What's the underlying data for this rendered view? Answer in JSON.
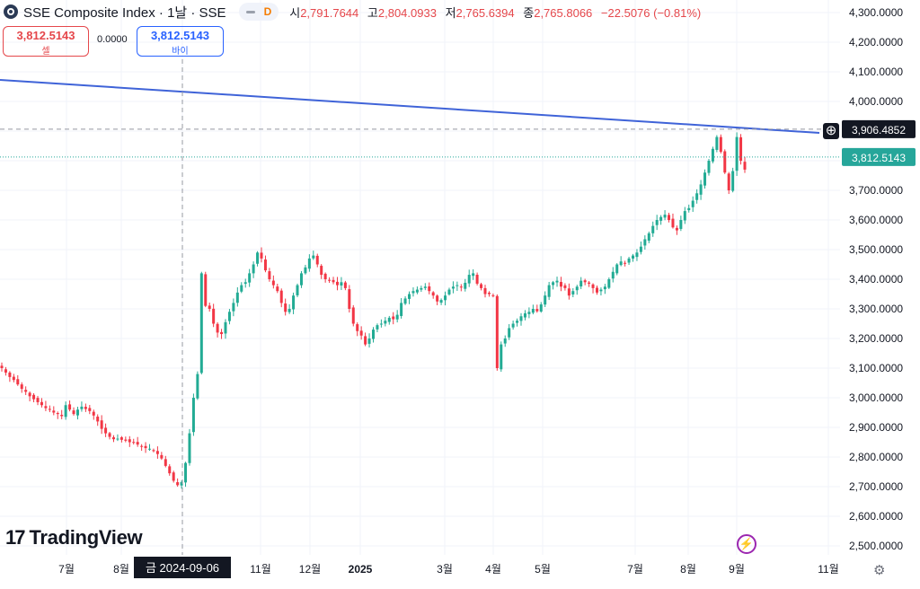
{
  "header": {
    "title": "SSE Composite Index · 1날 · SSE",
    "interval_badge": "D",
    "ohlc": [
      {
        "label": "시",
        "value": "2,791.7644"
      },
      {
        "label": "고",
        "value": "2,804.0933"
      },
      {
        "label": "저",
        "value": "2,765.6394"
      },
      {
        "label": "종",
        "value": "2,765.8066"
      }
    ],
    "change": "−22.5076 (−0.81%)"
  },
  "trade": {
    "sell_value": "3,812.5143",
    "sell_label": "셀",
    "spread": "0.0000",
    "buy_value": "3,812.5143",
    "buy_label": "바이"
  },
  "brand": "TradingView",
  "colors": {
    "up": "#22ab94",
    "down": "#f23645",
    "trend": "#3f63d8",
    "last": "#26a69a"
  },
  "chart_data": {
    "type": "candlestick",
    "x_tick_labels": [
      "7월",
      "8월",
      "금 2024-09-06",
      "11월",
      "12월",
      "2025",
      "3월",
      "4월",
      "5월",
      "7월",
      "8월",
      "9월",
      "11월"
    ],
    "y_tick_labels": [
      "4,300.0000",
      "4,200.0000",
      "4,100.0000",
      "4,000.0000",
      "3,900.0000",
      "3,800.0000",
      "3,700.0000",
      "3,600.0000",
      "3,500.0000",
      "3,400.0000",
      "3,300.0000",
      "3,200.0000",
      "3,100.0000",
      "3,000.0000",
      "2,900.0000",
      "2,800.0000",
      "2,700.0000",
      "2,600.0000",
      "2,500.0000"
    ],
    "ylim": [
      2480,
      4320
    ],
    "crosshair_x_label": "금 2024-09-06",
    "crosshair_y_label": "3,906.4852",
    "last_price_label": "3,812.5143",
    "closes": [
      3100,
      3085,
      3070,
      3060,
      3045,
      3030,
      3020,
      3005,
      2995,
      2985,
      2975,
      2965,
      2960,
      2950,
      2945,
      2938,
      2975,
      2960,
      2945,
      2960,
      2970,
      2962,
      2955,
      2940,
      2920,
      2895,
      2880,
      2868,
      2860,
      2862,
      2858,
      2855,
      2850,
      2848,
      2842,
      2835,
      2830,
      2828,
      2820,
      2810,
      2795,
      2770,
      2745,
      2720,
      2705,
      2715,
      2780,
      2880,
      3000,
      3080,
      3420,
      3310,
      3300,
      3250,
      3220,
      3215,
      3255,
      3290,
      3320,
      3355,
      3380,
      3390,
      3420,
      3450,
      3490,
      3470,
      3430,
      3400,
      3380,
      3360,
      3320,
      3290,
      3300,
      3345,
      3380,
      3420,
      3440,
      3470,
      3480,
      3450,
      3415,
      3400,
      3395,
      3390,
      3380,
      3390,
      3370,
      3300,
      3250,
      3225,
      3210,
      3180,
      3200,
      3230,
      3245,
      3250,
      3260,
      3270,
      3265,
      3280,
      3320,
      3335,
      3350,
      3360,
      3365,
      3370,
      3375,
      3360,
      3345,
      3325,
      3330,
      3345,
      3365,
      3375,
      3380,
      3372,
      3388,
      3415,
      3420,
      3385,
      3370,
      3350,
      3350,
      3345,
      3100,
      3180,
      3200,
      3235,
      3250,
      3260,
      3275,
      3285,
      3290,
      3300,
      3292,
      3315,
      3345,
      3380,
      3390,
      3395,
      3375,
      3370,
      3345,
      3360,
      3375,
      3395,
      3390,
      3385,
      3370,
      3355,
      3365,
      3375,
      3400,
      3425,
      3450,
      3460,
      3455,
      3470,
      3480,
      3490,
      3510,
      3535,
      3555,
      3580,
      3600,
      3610,
      3618,
      3600,
      3575,
      3565,
      3600,
      3630,
      3640,
      3665,
      3690,
      3720,
      3760,
      3800,
      3840,
      3880,
      3830,
      3760,
      3700,
      3765,
      3880,
      3800,
      3770
    ]
  }
}
